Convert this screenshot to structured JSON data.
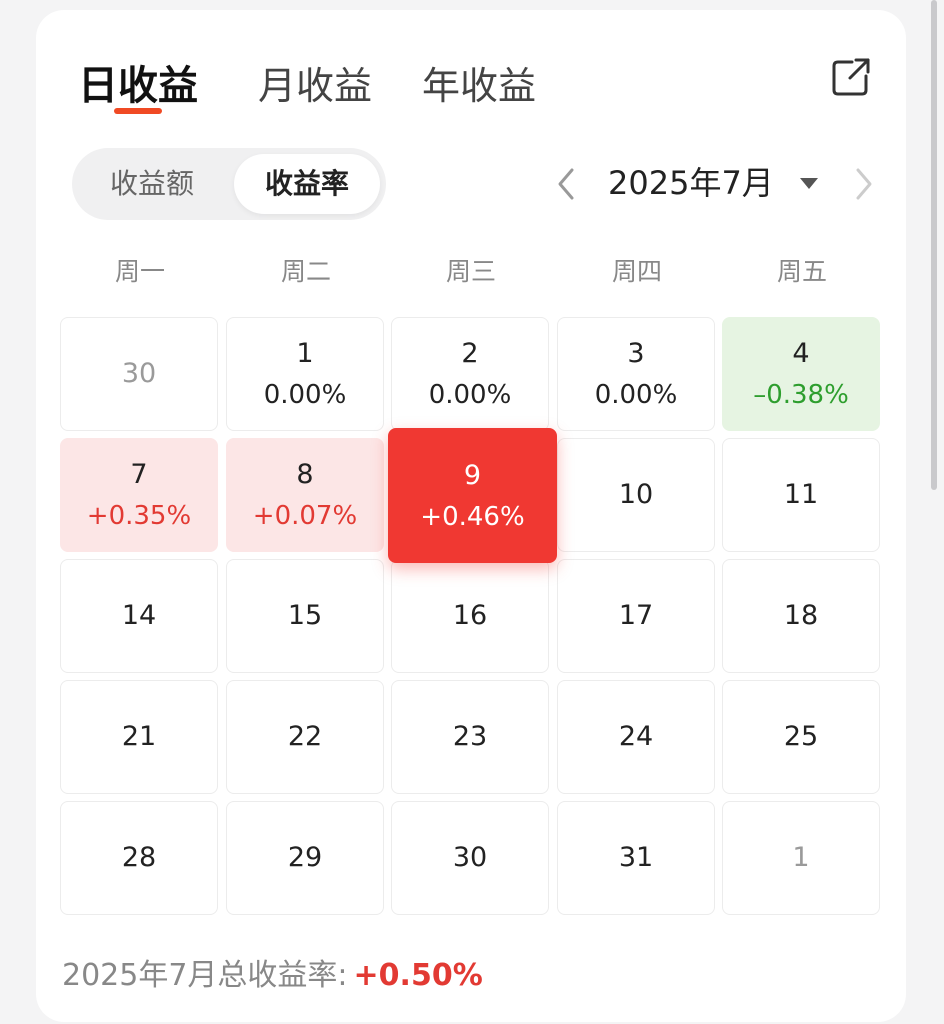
{
  "tabs": [
    {
      "label": "日收益",
      "active": true
    },
    {
      "label": "月收益",
      "active": false
    },
    {
      "label": "年收益",
      "active": false
    }
  ],
  "icons": {
    "share": "share-icon",
    "prev": "chevron-left-icon",
    "next": "chevron-right-icon",
    "dropdown": "caret-down-icon"
  },
  "toggle": {
    "options": [
      "收益额",
      "收益率"
    ],
    "selected": "收益率"
  },
  "month_nav": {
    "label": "2025年7月"
  },
  "weekdays": [
    "周一",
    "周二",
    "周三",
    "周四",
    "周五"
  ],
  "calendar": {
    "weeks": [
      [
        {
          "day": "30",
          "rate": "",
          "state": "muted"
        },
        {
          "day": "1",
          "rate": "0.00%",
          "state": "neutral"
        },
        {
          "day": "2",
          "rate": "0.00%",
          "state": "neutral"
        },
        {
          "day": "3",
          "rate": "0.00%",
          "state": "neutral"
        },
        {
          "day": "4",
          "rate": "–0.38%",
          "state": "loss"
        }
      ],
      [
        {
          "day": "7",
          "rate": "+0.35%",
          "state": "gain"
        },
        {
          "day": "8",
          "rate": "+0.07%",
          "state": "gain"
        },
        {
          "day": "9",
          "rate": "+0.46%",
          "state": "selected"
        },
        {
          "day": "10",
          "rate": "",
          "state": "normal"
        },
        {
          "day": "11",
          "rate": "",
          "state": "normal"
        }
      ],
      [
        {
          "day": "14",
          "rate": "",
          "state": "normal"
        },
        {
          "day": "15",
          "rate": "",
          "state": "normal"
        },
        {
          "day": "16",
          "rate": "",
          "state": "normal"
        },
        {
          "day": "17",
          "rate": "",
          "state": "normal"
        },
        {
          "day": "18",
          "rate": "",
          "state": "normal"
        }
      ],
      [
        {
          "day": "21",
          "rate": "",
          "state": "normal"
        },
        {
          "day": "22",
          "rate": "",
          "state": "normal"
        },
        {
          "day": "23",
          "rate": "",
          "state": "normal"
        },
        {
          "day": "24",
          "rate": "",
          "state": "normal"
        },
        {
          "day": "25",
          "rate": "",
          "state": "normal"
        }
      ],
      [
        {
          "day": "28",
          "rate": "",
          "state": "normal"
        },
        {
          "day": "29",
          "rate": "",
          "state": "normal"
        },
        {
          "day": "30",
          "rate": "",
          "state": "normal"
        },
        {
          "day": "31",
          "rate": "",
          "state": "normal"
        },
        {
          "day": "1",
          "rate": "",
          "state": "muted"
        }
      ]
    ]
  },
  "summary": {
    "label": "2025年7月总收益率:",
    "value": "+0.50%"
  },
  "colors": {
    "accent": "#f04a24",
    "gain": "#e23a33",
    "gain_bg": "#fce6e6",
    "loss": "#2e9e2e",
    "loss_bg": "#e6f4e2",
    "selected_bg": "#f03832"
  }
}
